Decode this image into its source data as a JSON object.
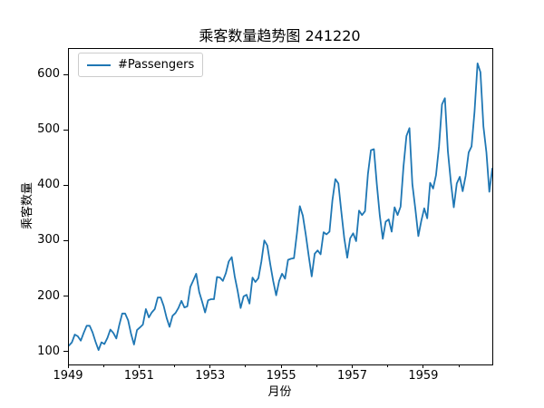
{
  "chart_data": {
    "type": "line",
    "title": "乘客数量趋势图 241220",
    "xlabel": "月份",
    "ylabel": "乘客数量",
    "legend_entries": [
      "#Passengers"
    ],
    "legend_position": "upper left",
    "grid": false,
    "background_color": "#ffffff",
    "line_color": "#1f77b4",
    "x_start": "1949-01",
    "x_end": "1960-12",
    "x_freq": "monthly",
    "xlim": [
      1949.0,
      1960.9167
    ],
    "ylim": [
      78,
      648
    ],
    "xticks": [
      1949,
      1951,
      1953,
      1955,
      1957,
      1959
    ],
    "xticks_minor": [
      1950,
      1952,
      1954,
      1956,
      1958,
      1960
    ],
    "yticks": [
      100,
      200,
      300,
      400,
      500,
      600
    ],
    "series": [
      {
        "name": "#Passengers",
        "values": [
          112,
          118,
          132,
          129,
          121,
          135,
          148,
          148,
          136,
          119,
          104,
          118,
          115,
          126,
          141,
          135,
          125,
          149,
          170,
          170,
          158,
          133,
          114,
          140,
          145,
          150,
          178,
          163,
          172,
          178,
          199,
          199,
          184,
          162,
          146,
          166,
          171,
          180,
          193,
          181,
          183,
          218,
          230,
          242,
          209,
          191,
          172,
          194,
          196,
          196,
          236,
          235,
          229,
          243,
          264,
          272,
          237,
          211,
          180,
          201,
          204,
          188,
          235,
          227,
          234,
          264,
          302,
          293,
          259,
          229,
          203,
          229,
          242,
          233,
          267,
          269,
          270,
          315,
          364,
          347,
          312,
          274,
          237,
          278,
          284,
          277,
          317,
          313,
          318,
          374,
          413,
          405,
          355,
          306,
          271,
          306,
          315,
          301,
          356,
          348,
          355,
          422,
          465,
          467,
          404,
          347,
          305,
          336,
          340,
          318,
          362,
          348,
          363,
          435,
          491,
          505,
          404,
          359,
          310,
          337,
          360,
          342,
          406,
          396,
          420,
          472,
          548,
          559,
          463,
          407,
          362,
          405,
          417,
          391,
          419,
          461,
          472,
          535,
          622,
          606,
          508,
          461,
          390,
          432
        ]
      }
    ]
  }
}
